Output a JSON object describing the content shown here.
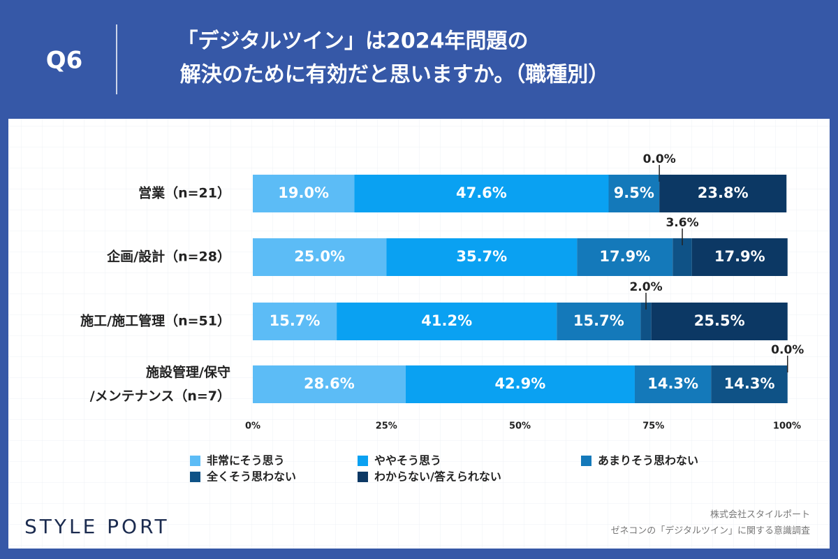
{
  "chart_data": {
    "type": "stacked-barh",
    "question": "Q6",
    "title": [
      "「デジタルツイン」は2024年問題の",
      "解決のために有効だと思いますか。（職種別）"
    ],
    "categories": [
      "営業（n=21）",
      "企画/設計（n=28）",
      "施工/施工管理（n=51）",
      "施設管理/保守\n/メンテナンス（n=7）"
    ],
    "series": [
      {
        "name": "非常にそう思う",
        "color": "#5cbcf6",
        "values": [
          19.0,
          25.0,
          15.7,
          28.6
        ],
        "value_labels": [
          "19.0%",
          "25.0%",
          "15.7%",
          "28.6%"
        ]
      },
      {
        "name": "ややそう思う",
        "color": "#0aa1f2",
        "values": [
          47.6,
          35.7,
          41.2,
          42.9
        ],
        "value_labels": [
          "47.6%",
          "35.7%",
          "41.2%",
          "42.9%"
        ]
      },
      {
        "name": "あまりそう思わない",
        "color": "#1479ba",
        "values": [
          9.5,
          17.9,
          15.7,
          14.3
        ],
        "value_labels": [
          "9.5%",
          "17.9%",
          "15.7%",
          "14.3%"
        ]
      },
      {
        "name": "全くそう思わない",
        "color": "#0f5286",
        "values": [
          0.0,
          3.6,
          2.0,
          14.3
        ],
        "value_labels": [
          "0.0%",
          "3.6%",
          "2.0%",
          "14.3%"
        ]
      },
      {
        "name": "わからない/答えられない",
        "color": "#0c3864",
        "values": [
          23.8,
          17.9,
          25.5,
          0.0
        ],
        "value_labels": [
          "23.8%",
          "17.9%",
          "25.5%",
          "0.0%"
        ]
      }
    ],
    "xlim": [
      0,
      100
    ],
    "xticks": [
      {
        "value": 0,
        "label": "0%"
      },
      {
        "value": 25,
        "label": "25%"
      },
      {
        "value": 50,
        "label": "50%"
      },
      {
        "value": 75,
        "label": "75%"
      },
      {
        "value": 100,
        "label": "100%"
      }
    ],
    "logo": "STYLE PORT",
    "source": [
      "株式会社スタイルポート",
      "ゼネコンの「デジタルツイン」に関する意識調査"
    ]
  }
}
